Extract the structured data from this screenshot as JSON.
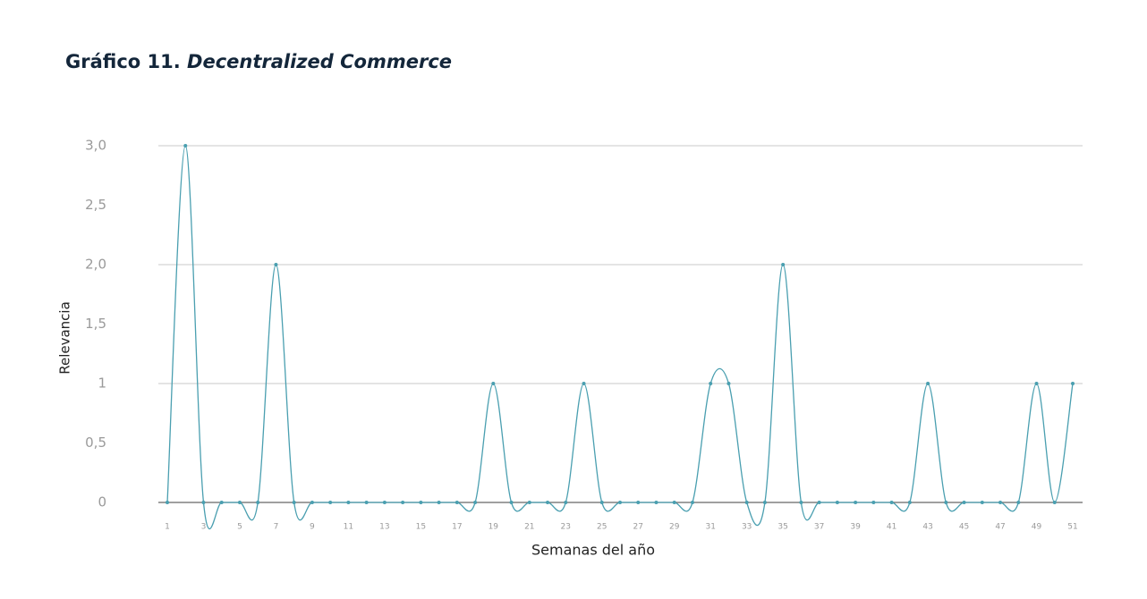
{
  "chart_data": {
    "type": "line",
    "title_number": "Gráfico 11.",
    "title": "Decentralized Commerce",
    "y_label": "Relevancia",
    "x_label": "Semanas del año",
    "categories": [
      1,
      null,
      3,
      null,
      5,
      null,
      7,
      null,
      9,
      null,
      11,
      null,
      13,
      null,
      15,
      null,
      17,
      null,
      19,
      null,
      21,
      null,
      23,
      null,
      25,
      null,
      27,
      null,
      29,
      null,
      31,
      null,
      33,
      null,
      35,
      null,
      37,
      null,
      39,
      null,
      41,
      null,
      43,
      null,
      45,
      null,
      47,
      null,
      49,
      null,
      51
    ],
    "values": [
      0,
      3,
      0,
      0,
      0,
      0,
      2,
      0,
      0,
      0,
      0,
      0,
      0,
      0,
      0,
      0,
      0,
      0,
      1,
      0,
      0,
      0,
      0,
      1,
      0,
      0,
      0,
      0,
      0,
      0,
      1,
      1,
      0,
      0,
      2,
      0,
      0,
      0,
      0,
      0,
      0,
      0,
      1,
      0,
      0,
      0,
      0,
      0,
      1,
      0,
      1
    ],
    "color": "#4a9fb0",
    "ylim": [
      0,
      3
    ],
    "yticks": [
      0,
      {
        "value": 0.5,
        "label": "0,5"
      },
      1,
      {
        "value": 1.5,
        "label": "1,5"
      },
      {
        "value": 2,
        "label": "2,0"
      },
      {
        "value": 2.5,
        "label": "2,5"
      },
      {
        "value": 3,
        "label": "3,0"
      }
    ],
    "grid": true,
    "smooth": true
  }
}
